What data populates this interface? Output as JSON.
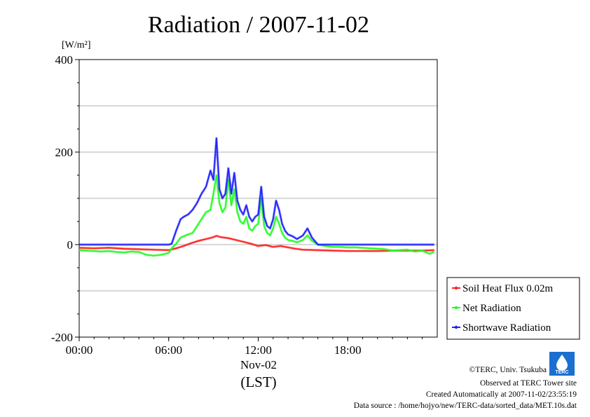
{
  "chart_data": {
    "type": "line",
    "title": "Radiation / 2007-11-02",
    "ylabel_unit": "[W/m²]",
    "xlabel_date": "Nov-02",
    "xlabel": "(LST)",
    "xlim": [
      0,
      24
    ],
    "ylim": [
      -200,
      400
    ],
    "x_ticks": [
      0,
      6,
      12,
      18
    ],
    "x_tick_labels": [
      "00:00",
      "06:00",
      "12:00",
      "18:00"
    ],
    "y_ticks": [
      -200,
      0,
      200,
      400
    ],
    "y_tick_labels": [
      "-200",
      "0",
      "200",
      "400"
    ],
    "grid": true,
    "legend_position": "right",
    "series": [
      {
        "name": "Soil Heat Flux 0.02m",
        "color": "#ff2020",
        "x": [
          0,
          1,
          2,
          3,
          4,
          5,
          6,
          6.5,
          7,
          7.5,
          8,
          8.5,
          9,
          9.2,
          9.5,
          10,
          10.5,
          11,
          11.5,
          12,
          12.5,
          13,
          13.5,
          14,
          14.5,
          15,
          16,
          17,
          18,
          19,
          20,
          21,
          22,
          23,
          23.8
        ],
        "values": [
          -7,
          -8,
          -7,
          -9,
          -10,
          -11,
          -12,
          -8,
          -3,
          3,
          8,
          12,
          16,
          19,
          16,
          14,
          10,
          6,
          2,
          -3,
          -1,
          -5,
          -3,
          -6,
          -9,
          -11,
          -12,
          -13,
          -14,
          -14,
          -14,
          -13,
          -13,
          -13,
          -12
        ]
      },
      {
        "name": "Net Radiation",
        "color": "#20ff20",
        "x": [
          0,
          0.5,
          1,
          1.5,
          2,
          2.5,
          3,
          3.5,
          4,
          4.5,
          5,
          5.5,
          6,
          6.2,
          6.5,
          6.8,
          7,
          7.3,
          7.6,
          7.9,
          8.2,
          8.5,
          8.8,
          9.0,
          9.2,
          9.4,
          9.6,
          9.8,
          10.0,
          10.2,
          10.4,
          10.6,
          10.8,
          11.0,
          11.2,
          11.4,
          11.6,
          11.8,
          12.0,
          12.2,
          12.4,
          12.6,
          12.8,
          13.0,
          13.2,
          13.4,
          13.6,
          13.8,
          14.0,
          14.3,
          14.6,
          15.0,
          15.3,
          15.6,
          16.0,
          16.5,
          17,
          17.5,
          18,
          18.5,
          19,
          19.5,
          20,
          20.5,
          21,
          21.5,
          22,
          22.5,
          23,
          23.5,
          23.8
        ],
        "values": [
          -12,
          -13,
          -14,
          -15,
          -14,
          -16,
          -17,
          -15,
          -16,
          -22,
          -24,
          -22,
          -18,
          -8,
          2,
          15,
          18,
          22,
          25,
          40,
          55,
          70,
          75,
          110,
          150,
          90,
          70,
          80,
          140,
          85,
          120,
          70,
          50,
          45,
          60,
          35,
          30,
          40,
          45,
          100,
          40,
          25,
          20,
          35,
          60,
          45,
          25,
          15,
          10,
          8,
          5,
          10,
          20,
          8,
          0,
          -3,
          -5,
          -5,
          -6,
          -6,
          -7,
          -8,
          -9,
          -10,
          -13,
          -12,
          -11,
          -15,
          -13,
          -20,
          -15
        ]
      },
      {
        "name": "Shortwave Radiation",
        "color": "#2020ff",
        "x": [
          0,
          1,
          2,
          3,
          4,
          5,
          6,
          6.2,
          6.5,
          6.8,
          7,
          7.3,
          7.6,
          7.9,
          8.2,
          8.5,
          8.8,
          9.0,
          9.2,
          9.4,
          9.6,
          9.8,
          10.0,
          10.2,
          10.4,
          10.6,
          10.8,
          11.0,
          11.2,
          11.4,
          11.6,
          11.8,
          12.0,
          12.2,
          12.4,
          12.6,
          12.8,
          13.0,
          13.2,
          13.4,
          13.6,
          13.8,
          14.0,
          14.3,
          14.6,
          15.0,
          15.3,
          15.6,
          16.0,
          17,
          18,
          19,
          20,
          21,
          22,
          23,
          23.8
        ],
        "values": [
          0,
          0,
          0,
          0,
          0,
          0,
          0,
          2,
          30,
          55,
          60,
          65,
          75,
          90,
          110,
          125,
          160,
          140,
          230,
          120,
          100,
          110,
          165,
          110,
          155,
          95,
          75,
          65,
          85,
          60,
          50,
          60,
          65,
          125,
          60,
          40,
          35,
          55,
          95,
          75,
          45,
          30,
          22,
          18,
          12,
          20,
          35,
          15,
          0,
          0,
          0,
          0,
          0,
          0,
          0,
          0,
          0
        ]
      }
    ]
  },
  "footer": {
    "copyright": "©TERC, Univ. Tsukuba",
    "observed": "Observed at TERC Tower site",
    "created": "Created Automatically at 2007-11-02/23:55:19",
    "source": "Data source : /home/hojyo/new/TERC-data/sorted_data/MET.10s.dat",
    "logo_text": "TERC"
  }
}
